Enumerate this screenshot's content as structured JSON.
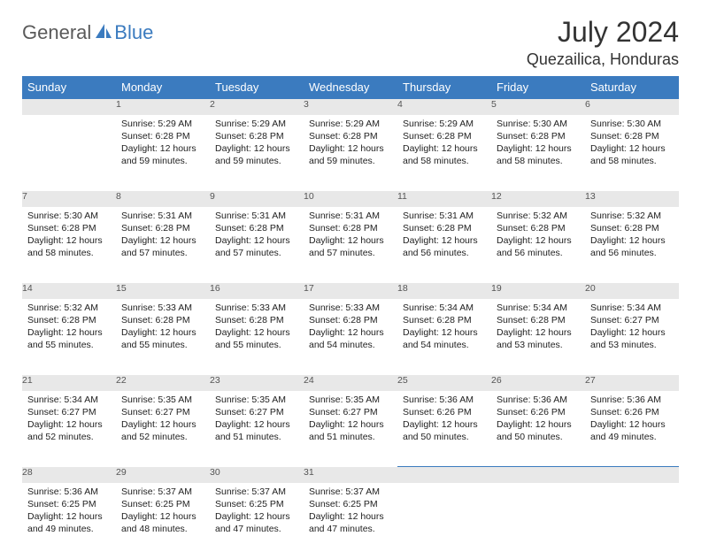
{
  "logo": {
    "part1": "General",
    "part2": "Blue"
  },
  "title": "July 2024",
  "location": "Quezailica, Honduras",
  "colors": {
    "header_bg": "#3b7bbf",
    "header_text": "#ffffff",
    "daynum_bg": "#e8e8e8",
    "daynum_text": "#555555",
    "body_text": "#222222",
    "page_bg": "#ffffff",
    "logo_gray": "#5a5a5a",
    "logo_blue": "#3b7bbf"
  },
  "weekdays": [
    "Sunday",
    "Monday",
    "Tuesday",
    "Wednesday",
    "Thursday",
    "Friday",
    "Saturday"
  ],
  "calendar": {
    "type": "table",
    "columns": 7,
    "start_weekday_index": 1,
    "days": [
      {
        "n": 1,
        "sunrise": "5:29 AM",
        "sunset": "6:28 PM",
        "daylight": "12 hours and 59 minutes."
      },
      {
        "n": 2,
        "sunrise": "5:29 AM",
        "sunset": "6:28 PM",
        "daylight": "12 hours and 59 minutes."
      },
      {
        "n": 3,
        "sunrise": "5:29 AM",
        "sunset": "6:28 PM",
        "daylight": "12 hours and 59 minutes."
      },
      {
        "n": 4,
        "sunrise": "5:29 AM",
        "sunset": "6:28 PM",
        "daylight": "12 hours and 58 minutes."
      },
      {
        "n": 5,
        "sunrise": "5:30 AM",
        "sunset": "6:28 PM",
        "daylight": "12 hours and 58 minutes."
      },
      {
        "n": 6,
        "sunrise": "5:30 AM",
        "sunset": "6:28 PM",
        "daylight": "12 hours and 58 minutes."
      },
      {
        "n": 7,
        "sunrise": "5:30 AM",
        "sunset": "6:28 PM",
        "daylight": "12 hours and 58 minutes."
      },
      {
        "n": 8,
        "sunrise": "5:31 AM",
        "sunset": "6:28 PM",
        "daylight": "12 hours and 57 minutes."
      },
      {
        "n": 9,
        "sunrise": "5:31 AM",
        "sunset": "6:28 PM",
        "daylight": "12 hours and 57 minutes."
      },
      {
        "n": 10,
        "sunrise": "5:31 AM",
        "sunset": "6:28 PM",
        "daylight": "12 hours and 57 minutes."
      },
      {
        "n": 11,
        "sunrise": "5:31 AM",
        "sunset": "6:28 PM",
        "daylight": "12 hours and 56 minutes."
      },
      {
        "n": 12,
        "sunrise": "5:32 AM",
        "sunset": "6:28 PM",
        "daylight": "12 hours and 56 minutes."
      },
      {
        "n": 13,
        "sunrise": "5:32 AM",
        "sunset": "6:28 PM",
        "daylight": "12 hours and 56 minutes."
      },
      {
        "n": 14,
        "sunrise": "5:32 AM",
        "sunset": "6:28 PM",
        "daylight": "12 hours and 55 minutes."
      },
      {
        "n": 15,
        "sunrise": "5:33 AM",
        "sunset": "6:28 PM",
        "daylight": "12 hours and 55 minutes."
      },
      {
        "n": 16,
        "sunrise": "5:33 AM",
        "sunset": "6:28 PM",
        "daylight": "12 hours and 55 minutes."
      },
      {
        "n": 17,
        "sunrise": "5:33 AM",
        "sunset": "6:28 PM",
        "daylight": "12 hours and 54 minutes."
      },
      {
        "n": 18,
        "sunrise": "5:34 AM",
        "sunset": "6:28 PM",
        "daylight": "12 hours and 54 minutes."
      },
      {
        "n": 19,
        "sunrise": "5:34 AM",
        "sunset": "6:28 PM",
        "daylight": "12 hours and 53 minutes."
      },
      {
        "n": 20,
        "sunrise": "5:34 AM",
        "sunset": "6:27 PM",
        "daylight": "12 hours and 53 minutes."
      },
      {
        "n": 21,
        "sunrise": "5:34 AM",
        "sunset": "6:27 PM",
        "daylight": "12 hours and 52 minutes."
      },
      {
        "n": 22,
        "sunrise": "5:35 AM",
        "sunset": "6:27 PM",
        "daylight": "12 hours and 52 minutes."
      },
      {
        "n": 23,
        "sunrise": "5:35 AM",
        "sunset": "6:27 PM",
        "daylight": "12 hours and 51 minutes."
      },
      {
        "n": 24,
        "sunrise": "5:35 AM",
        "sunset": "6:27 PM",
        "daylight": "12 hours and 51 minutes."
      },
      {
        "n": 25,
        "sunrise": "5:36 AM",
        "sunset": "6:26 PM",
        "daylight": "12 hours and 50 minutes."
      },
      {
        "n": 26,
        "sunrise": "5:36 AM",
        "sunset": "6:26 PM",
        "daylight": "12 hours and 50 minutes."
      },
      {
        "n": 27,
        "sunrise": "5:36 AM",
        "sunset": "6:26 PM",
        "daylight": "12 hours and 49 minutes."
      },
      {
        "n": 28,
        "sunrise": "5:36 AM",
        "sunset": "6:25 PM",
        "daylight": "12 hours and 49 minutes."
      },
      {
        "n": 29,
        "sunrise": "5:37 AM",
        "sunset": "6:25 PM",
        "daylight": "12 hours and 48 minutes."
      },
      {
        "n": 30,
        "sunrise": "5:37 AM",
        "sunset": "6:25 PM",
        "daylight": "12 hours and 47 minutes."
      },
      {
        "n": 31,
        "sunrise": "5:37 AM",
        "sunset": "6:25 PM",
        "daylight": "12 hours and 47 minutes."
      }
    ]
  },
  "labels": {
    "sunrise": "Sunrise:",
    "sunset": "Sunset:",
    "daylight": "Daylight:"
  }
}
